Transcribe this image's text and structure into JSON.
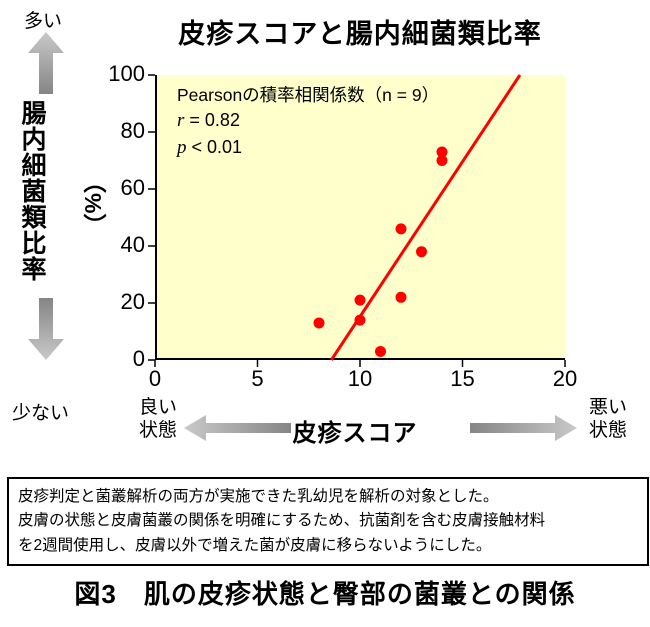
{
  "title": "皮疹スコアと腸内細菌類比率",
  "y_axis": {
    "more": "多い",
    "less": "少ない",
    "label": "腸内細菌類比率",
    "unit": "（%）"
  },
  "x_axis": {
    "label": "皮疹スコア",
    "good_line1": "良い",
    "good_line2": "状態",
    "bad_line1": "悪い",
    "bad_line2": "状態"
  },
  "annotation": {
    "line1": "Pearsonの積率相関係数（n = 9）",
    "r_symbol": "r",
    "r_rest": " = 0.82",
    "p_symbol": "p",
    "p_rest": " < 0.01"
  },
  "chart_data": {
    "type": "scatter",
    "title": "皮疹スコアと腸内細菌類比率",
    "xlabel": "皮疹スコア",
    "ylabel": "腸内細菌類比率（%）",
    "xlim": [
      0,
      20
    ],
    "ylim": [
      0,
      100
    ],
    "x_ticks": [
      0,
      5,
      10,
      15,
      20
    ],
    "y_ticks": [
      0,
      20,
      40,
      60,
      80,
      100
    ],
    "points": [
      {
        "x": 8,
        "y": 13
      },
      {
        "x": 10,
        "y": 21
      },
      {
        "x": 10,
        "y": 14
      },
      {
        "x": 11,
        "y": 3
      },
      {
        "x": 12,
        "y": 46
      },
      {
        "x": 12,
        "y": 22
      },
      {
        "x": 13,
        "y": 38
      },
      {
        "x": 14,
        "y": 73
      },
      {
        "x": 14,
        "y": 70
      }
    ],
    "trendline": {
      "x1": 8.6,
      "y1": 0,
      "x2": 17.8,
      "y2": 100
    },
    "stats": {
      "n": 9,
      "r": 0.82,
      "p": "< 0.01"
    },
    "colors": {
      "point": "#ff0000",
      "line": "#ff0000",
      "plot_bg": "#ffffcc",
      "arrow": "#a6a6a6"
    },
    "legend": "none",
    "grid": false
  },
  "note_box": {
    "line1": "皮疹判定と菌叢解析の両方が実施できた乳幼児を解析の対象とした。",
    "line2": "皮膚の状態と皮膚菌叢の関係を明確にするため、抗菌剤を含む皮膚接触材料",
    "line3": "を2週間使用し、皮膚以外で増えた菌が皮膚に移らないようにした。"
  },
  "caption": "図3　肌の皮疹状態と臀部の菌叢との関係"
}
